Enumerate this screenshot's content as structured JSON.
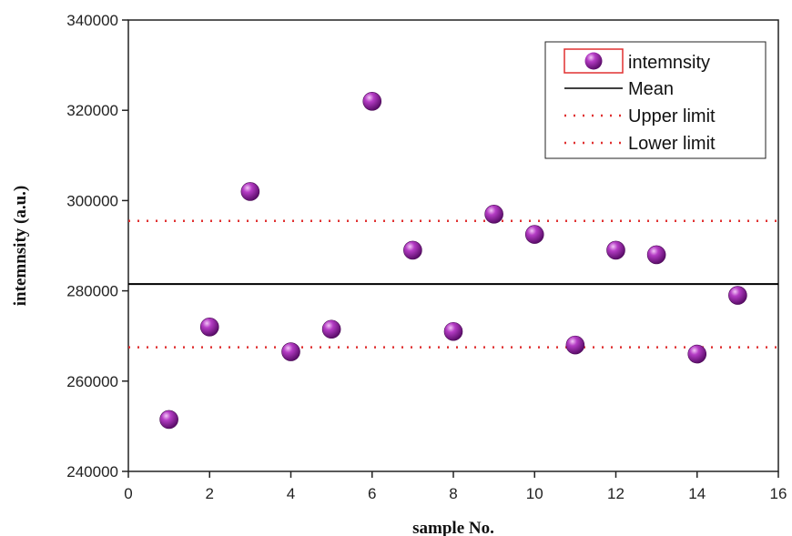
{
  "chart_data": {
    "type": "scatter",
    "xlabel": "sample No.",
    "ylabel": "intemnsity (a.u.)",
    "xlim": [
      0,
      16
    ],
    "ylim": [
      240000,
      340000
    ],
    "xticks": [
      0,
      2,
      4,
      6,
      8,
      10,
      12,
      14,
      16
    ],
    "yticks": [
      240000,
      260000,
      280000,
      300000,
      320000,
      340000
    ],
    "grid": false,
    "legend_position": "top-right",
    "series": [
      {
        "name": "intemnsity",
        "kind": "points",
        "color": "#8b1a99",
        "x": [
          1,
          2,
          3,
          4,
          5,
          6,
          7,
          8,
          9,
          10,
          11,
          12,
          13,
          14,
          15
        ],
        "y": [
          251500,
          272000,
          302000,
          266500,
          271500,
          322000,
          289000,
          271000,
          297000,
          292500,
          268000,
          289000,
          288000,
          266000,
          279000
        ]
      },
      {
        "name": "Mean",
        "kind": "hline",
        "color": "#000000",
        "style": "solid",
        "y": 281500
      },
      {
        "name": "Upper limit",
        "kind": "hline",
        "color": "#e03030",
        "style": "dotted",
        "y": 295500
      },
      {
        "name": "Lower limit",
        "kind": "hline",
        "color": "#e03030",
        "style": "dotted",
        "y": 267500
      }
    ]
  }
}
